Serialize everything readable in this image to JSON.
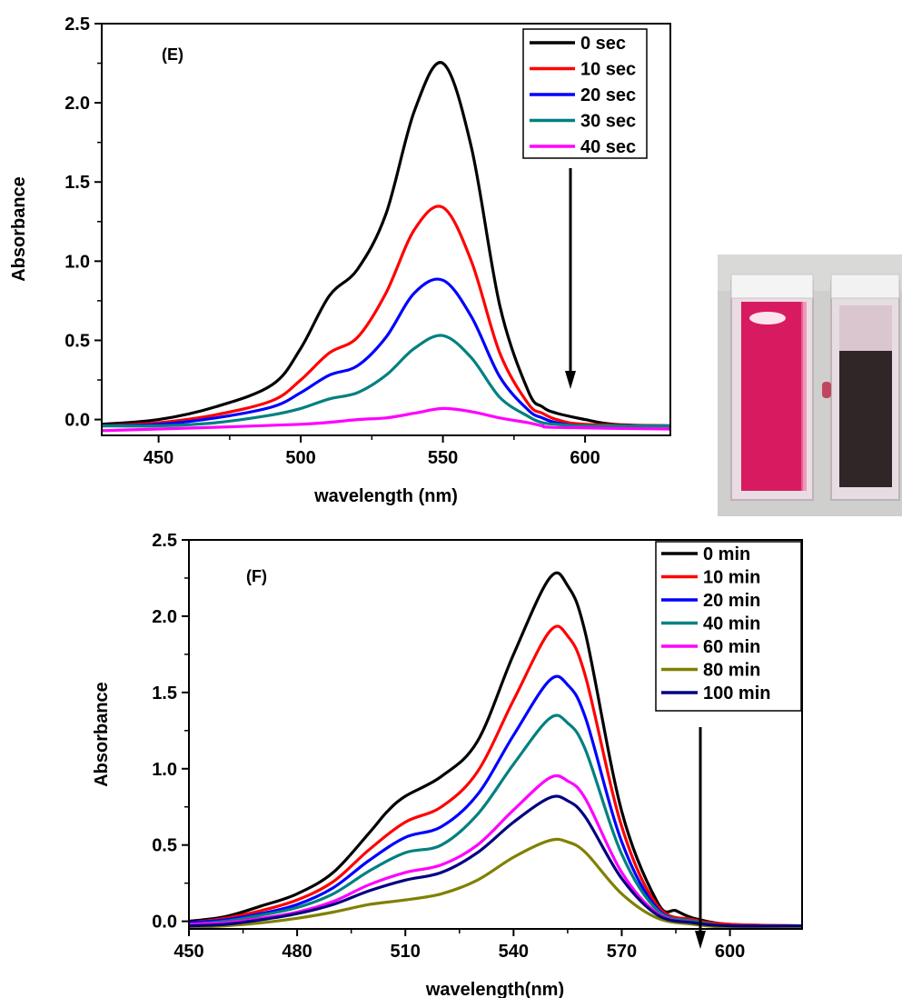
{
  "chart_data": [
    {
      "panel": "(E)",
      "type": "line",
      "xlabel": "wavelength (nm)",
      "ylabel": "Absorbance",
      "xlim": [
        430,
        630
      ],
      "ylim": [
        -0.1,
        2.5
      ],
      "xticks": [
        450,
        500,
        550,
        600
      ],
      "yticks": [
        0.0,
        0.5,
        1.0,
        1.5,
        2.0,
        2.5
      ],
      "grid": false,
      "legend_position": "top-right",
      "colors": [
        "#000000",
        "#ff0000",
        "#0000ff",
        "#008080",
        "#ff00ff"
      ],
      "series": [
        {
          "name": "0 sec",
          "x": [
            430,
            450,
            470,
            490,
            500,
            510,
            520,
            530,
            540,
            550,
            560,
            570,
            580,
            585,
            590,
            600,
            610,
            630
          ],
          "y": [
            -0.03,
            0.0,
            0.08,
            0.22,
            0.45,
            0.78,
            0.95,
            1.3,
            1.95,
            2.25,
            1.72,
            0.72,
            0.18,
            0.08,
            0.04,
            0.0,
            -0.03,
            -0.04
          ]
        },
        {
          "name": "10 sec",
          "x": [
            430,
            450,
            470,
            490,
            500,
            510,
            520,
            530,
            540,
            550,
            560,
            570,
            580,
            585,
            590,
            600,
            630
          ],
          "y": [
            -0.04,
            -0.02,
            0.03,
            0.12,
            0.25,
            0.42,
            0.52,
            0.8,
            1.2,
            1.34,
            1.0,
            0.42,
            0.1,
            0.04,
            0.0,
            -0.03,
            -0.04
          ]
        },
        {
          "name": "20 sec",
          "x": [
            430,
            450,
            470,
            490,
            500,
            510,
            520,
            530,
            540,
            550,
            560,
            570,
            580,
            585,
            590,
            600,
            630
          ],
          "y": [
            -0.04,
            -0.03,
            0.01,
            0.08,
            0.17,
            0.28,
            0.34,
            0.52,
            0.8,
            0.88,
            0.65,
            0.27,
            0.06,
            0.01,
            -0.02,
            -0.04,
            -0.04
          ]
        },
        {
          "name": "30 sec",
          "x": [
            430,
            450,
            470,
            490,
            500,
            510,
            520,
            530,
            540,
            550,
            560,
            570,
            580,
            585,
            590,
            600,
            630
          ],
          "y": [
            -0.04,
            -0.04,
            -0.02,
            0.03,
            0.07,
            0.13,
            0.17,
            0.28,
            0.45,
            0.53,
            0.39,
            0.14,
            0.02,
            -0.02,
            -0.03,
            -0.04,
            -0.04
          ]
        },
        {
          "name": "40 sec",
          "x": [
            430,
            450,
            500,
            520,
            530,
            540,
            550,
            560,
            570,
            580,
            585,
            590,
            630
          ],
          "y": [
            -0.07,
            -0.06,
            -0.03,
            0.0,
            0.01,
            0.04,
            0.07,
            0.05,
            0.01,
            -0.02,
            -0.04,
            -0.05,
            -0.06
          ]
        }
      ]
    },
    {
      "panel": "(F)",
      "type": "line",
      "xlabel": "wavelength(nm)",
      "ylabel": "Absorbance",
      "xlim": [
        450,
        620
      ],
      "ylim": [
        -0.05,
        2.5
      ],
      "xticks": [
        450,
        480,
        510,
        540,
        570,
        600
      ],
      "yticks": [
        0.0,
        0.5,
        1.0,
        1.5,
        2.0,
        2.5
      ],
      "grid": false,
      "legend_position": "top-right",
      "colors": [
        "#000000",
        "#ff0000",
        "#0000ff",
        "#008080",
        "#ff00ff",
        "#808000",
        "#000080"
      ],
      "series": [
        {
          "name": "0 min",
          "x": [
            450,
            460,
            470,
            480,
            490,
            500,
            505,
            510,
            520,
            530,
            540,
            550,
            555,
            560,
            570,
            580,
            585,
            590,
            600,
            620
          ],
          "y": [
            0.0,
            0.03,
            0.1,
            0.18,
            0.32,
            0.58,
            0.72,
            0.82,
            0.95,
            1.18,
            1.75,
            2.25,
            2.2,
            1.88,
            0.72,
            0.12,
            0.07,
            0.02,
            -0.02,
            -0.03
          ]
        },
        {
          "name": "10 min",
          "x": [
            450,
            460,
            470,
            480,
            490,
            500,
            510,
            520,
            530,
            540,
            550,
            555,
            560,
            570,
            580,
            590,
            600,
            620
          ],
          "y": [
            -0.01,
            0.02,
            0.07,
            0.14,
            0.26,
            0.47,
            0.65,
            0.75,
            0.98,
            1.45,
            1.9,
            1.87,
            1.6,
            0.62,
            0.1,
            0.01,
            -0.02,
            -0.03
          ]
        },
        {
          "name": "20 min",
          "x": [
            450,
            460,
            470,
            480,
            490,
            500,
            510,
            520,
            530,
            540,
            550,
            555,
            560,
            570,
            580,
            590,
            600,
            620
          ],
          "y": [
            -0.01,
            0.01,
            0.05,
            0.11,
            0.22,
            0.4,
            0.55,
            0.62,
            0.83,
            1.22,
            1.58,
            1.55,
            1.33,
            0.52,
            0.08,
            0.0,
            -0.03,
            -0.03
          ]
        },
        {
          "name": "40 min",
          "x": [
            450,
            460,
            470,
            480,
            490,
            500,
            510,
            520,
            530,
            540,
            550,
            555,
            560,
            570,
            580,
            590,
            600,
            620
          ],
          "y": [
            -0.02,
            0.0,
            0.04,
            0.09,
            0.18,
            0.33,
            0.45,
            0.5,
            0.7,
            1.03,
            1.33,
            1.3,
            1.12,
            0.44,
            0.07,
            0.0,
            -0.03,
            -0.03
          ]
        },
        {
          "name": "60 min",
          "x": [
            450,
            460,
            470,
            480,
            490,
            500,
            510,
            520,
            530,
            540,
            550,
            555,
            560,
            570,
            580,
            590,
            600,
            620
          ],
          "y": [
            -0.02,
            -0.01,
            0.02,
            0.06,
            0.13,
            0.24,
            0.32,
            0.37,
            0.5,
            0.73,
            0.94,
            0.92,
            0.8,
            0.32,
            0.05,
            -0.01,
            -0.03,
            -0.03
          ]
        },
        {
          "name": "80 min",
          "x": [
            450,
            460,
            470,
            480,
            490,
            500,
            510,
            520,
            530,
            540,
            550,
            555,
            560,
            570,
            580,
            590,
            600,
            620
          ],
          "y": [
            -0.04,
            -0.03,
            -0.01,
            0.02,
            0.06,
            0.11,
            0.14,
            0.18,
            0.27,
            0.42,
            0.53,
            0.52,
            0.45,
            0.18,
            0.02,
            -0.02,
            -0.04,
            -0.04
          ]
        },
        {
          "name": "100 min",
          "x": [
            450,
            460,
            470,
            480,
            490,
            500,
            510,
            520,
            530,
            540,
            550,
            555,
            560,
            570,
            580,
            590,
            600,
            620
          ],
          "y": [
            -0.03,
            -0.02,
            0.01,
            0.05,
            0.11,
            0.2,
            0.27,
            0.32,
            0.45,
            0.65,
            0.81,
            0.79,
            0.68,
            0.28,
            0.04,
            -0.01,
            -0.03,
            -0.03
          ]
        }
      ]
    }
  ],
  "photo": {
    "left_cuvette_color": "#d81b60",
    "right_cuvette_color": "#2f2628",
    "background_color": "#cfcfcd"
  }
}
